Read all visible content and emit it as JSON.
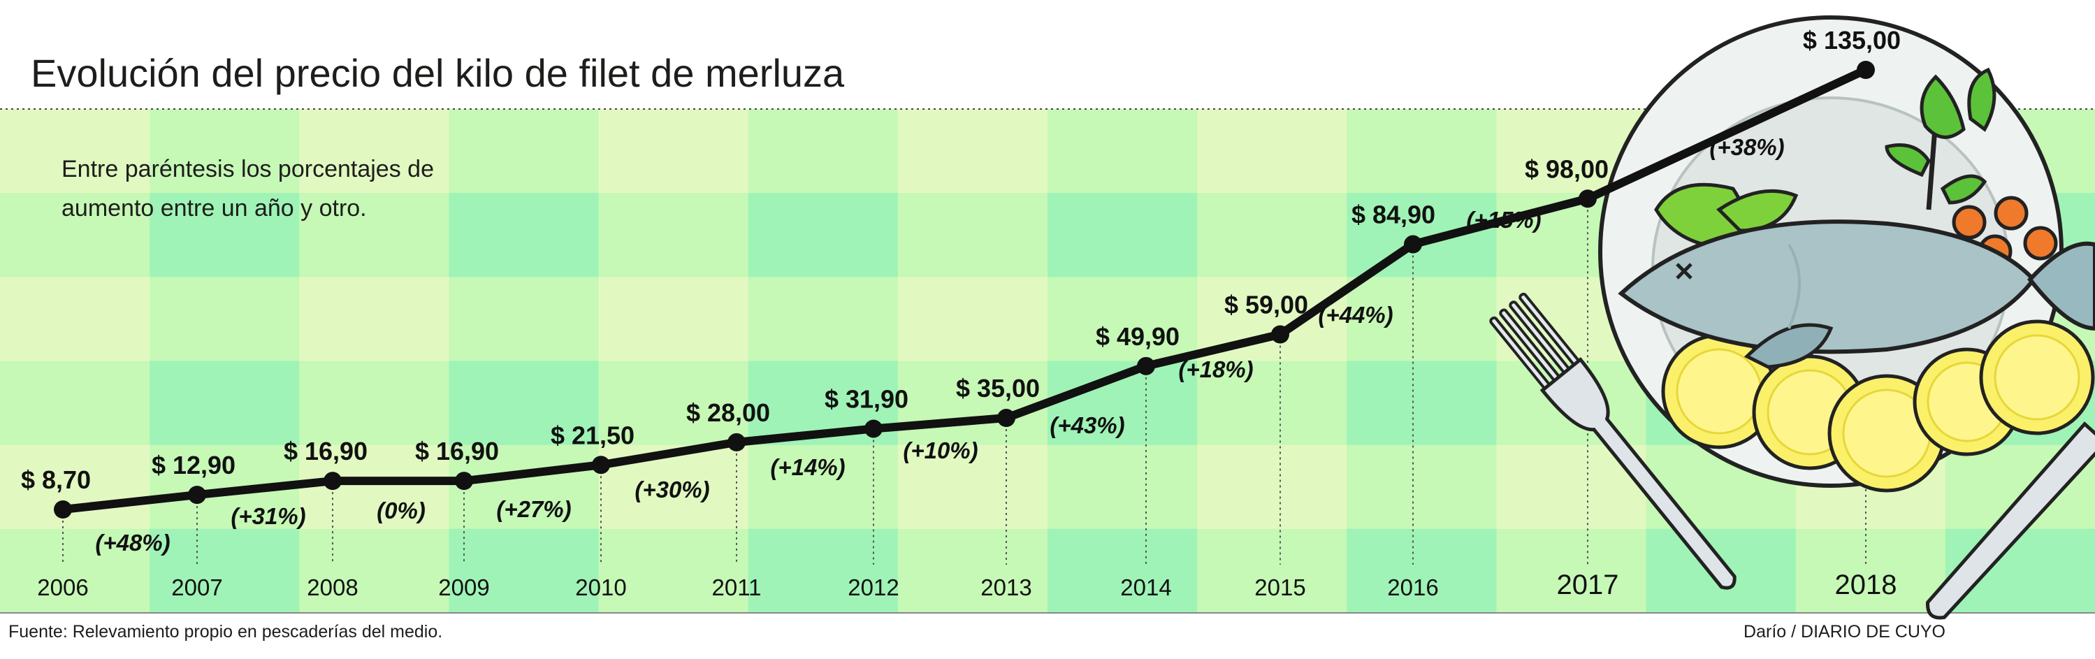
{
  "title": "Evolución del precio del kilo de filet de merluza",
  "note_lines": [
    "Entre paréntesis los porcentajes de",
    "aumento entre un año y otro."
  ],
  "source": "Fuente: Relevamiento propio en pescaderías del medio.",
  "credit": "Darío / DIARIO DE CUYO",
  "colors": {
    "background_light": "#e1f9c1",
    "background_mid": "#c6f8b6",
    "background_dark": "#9ff3b6",
    "line": "#111111"
  },
  "chart_data": {
    "type": "line",
    "title": "Evolución del precio del kilo de filet de merluza",
    "x": [
      "2006",
      "2007",
      "2008",
      "2009",
      "2010",
      "2011",
      "2012",
      "2013",
      "2014",
      "2015",
      "2016",
      "2017",
      "2018"
    ],
    "series": [
      {
        "values": [
          8.7,
          12.9,
          16.9,
          16.9,
          21.5,
          28.0,
          31.9,
          35.0,
          49.9,
          59.0,
          84.9,
          98.0,
          135.0
        ],
        "value_labels": [
          "$ 8,70",
          "$ 12,90",
          "$ 16,90",
          "$ 16,90",
          "$ 21,50",
          "$ 28,00",
          "$ 31,90",
          "$ 35,00",
          "$ 49,90",
          "$ 59,00",
          "$ 84,90",
          "$ 98,00",
          "$ 135,00"
        ]
      }
    ],
    "change_labels": [
      "(+48%)",
      "(+31%)",
      "(0%)",
      "(+27%)",
      "(+30%)",
      "(+14%)",
      "(+10%)",
      "(+43%)",
      "(+18%)",
      "(+44%)",
      "(+15%)",
      "(+38%)"
    ],
    "ylim": [
      0,
      140
    ],
    "grid": false,
    "legend": "none"
  }
}
